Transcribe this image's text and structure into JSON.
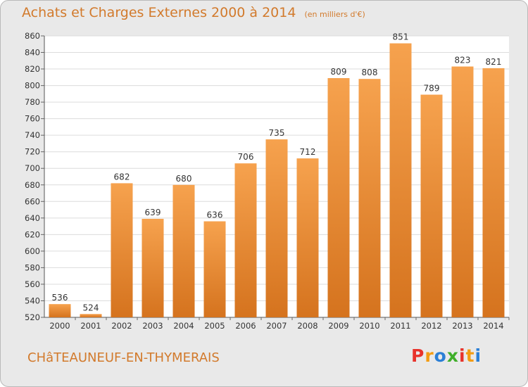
{
  "title": "Achats et Charges Externes 2000 à 2014",
  "subtitle": "(en milliers d'€)",
  "commune": "CHâTEAUNEUF-EN-THYMERAIS",
  "logo_text": "Proxiti",
  "logo_colors": [
    "#e8322b",
    "#f39c12",
    "#2b7fd6",
    "#3fae2a",
    "#e8322b",
    "#f39c12",
    "#2b7fd6"
  ],
  "colors": {
    "accent": "#d27a2c",
    "bar_top": "#f6a24e",
    "bar_bottom": "#d5731e",
    "background": "#e9e9e9",
    "plot_bg": "#ffffff",
    "grid": "#dcdcdc"
  },
  "chart_data": {
    "type": "bar",
    "categories": [
      "2000",
      "2001",
      "2002",
      "2003",
      "2004",
      "2005",
      "2006",
      "2007",
      "2008",
      "2009",
      "2010",
      "2011",
      "2012",
      "2013",
      "2014"
    ],
    "values": [
      536,
      524,
      682,
      639,
      680,
      636,
      706,
      735,
      712,
      809,
      808,
      851,
      789,
      823,
      821
    ],
    "ylim": [
      520,
      860
    ],
    "yticks": [
      520,
      540,
      560,
      580,
      600,
      620,
      640,
      660,
      680,
      700,
      720,
      740,
      760,
      780,
      800,
      820,
      840,
      860
    ],
    "grid": true,
    "xlabel": "",
    "ylabel": ""
  }
}
